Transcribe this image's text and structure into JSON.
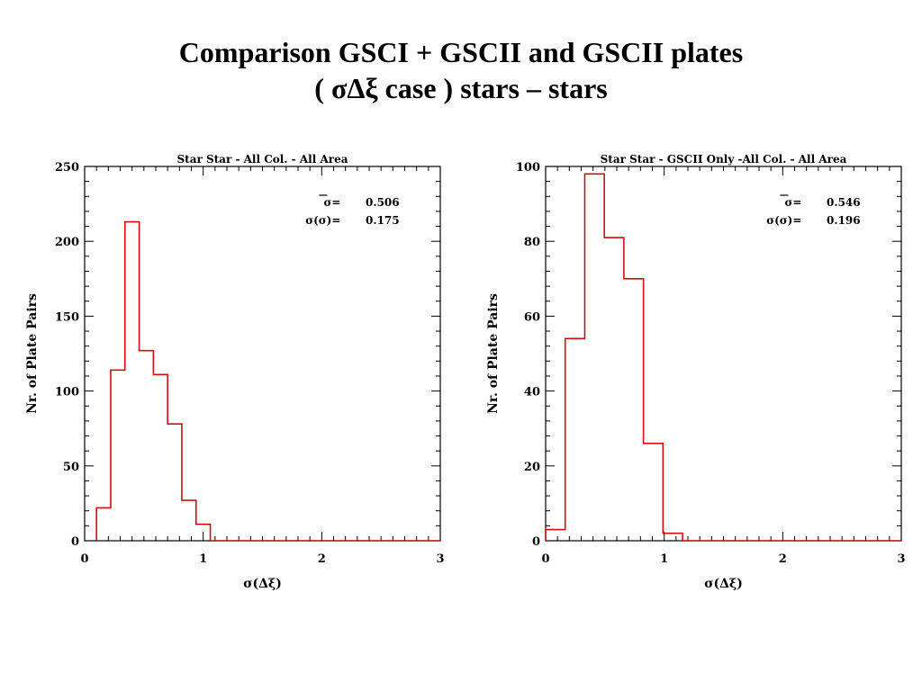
{
  "slide": {
    "title_line1": "Comparison GSCI + GSCII and GSCII plates",
    "title_line2": "( σΔξ case ) stars – stars"
  },
  "colors": {
    "histogram": "#cc1111",
    "axis": "#000000"
  },
  "chart_data": [
    {
      "type": "histogram",
      "title": "Star Star - All Col. - All Area",
      "xlabel": "σ(Δξ)",
      "ylabel": "Nr. of Plate Pairs",
      "xlim": [
        0,
        3
      ],
      "ylim": [
        0,
        250
      ],
      "xticks": [
        0,
        1,
        2,
        3
      ],
      "yticks": [
        0,
        50,
        100,
        150,
        200,
        250
      ],
      "bin_width": 0.12,
      "bins": [
        {
          "x0": 0.1,
          "x1": 0.22,
          "count": 22
        },
        {
          "x0": 0.22,
          "x1": 0.34,
          "count": 114
        },
        {
          "x0": 0.34,
          "x1": 0.46,
          "count": 213
        },
        {
          "x0": 0.46,
          "x1": 0.58,
          "count": 127
        },
        {
          "x0": 0.58,
          "x1": 0.7,
          "count": 111
        },
        {
          "x0": 0.7,
          "x1": 0.82,
          "count": 78
        },
        {
          "x0": 0.82,
          "x1": 0.94,
          "count": 27
        },
        {
          "x0": 0.94,
          "x1": 1.06,
          "count": 11
        },
        {
          "x0": 1.06,
          "x1": 3.0,
          "count": 0
        }
      ],
      "stats": [
        {
          "label": "σ=",
          "value": "0.506"
        },
        {
          "label": "σ(σ)=",
          "value": "0.175"
        }
      ],
      "grid": false,
      "legend": "none"
    },
    {
      "type": "histogram",
      "title": "Star Star - GSCII Only -All Col. - All Area",
      "xlabel": "σ(Δξ)",
      "ylabel": "Nr. of Plate Pairs",
      "xlim": [
        0,
        3
      ],
      "ylim": [
        0,
        100
      ],
      "xticks": [
        0,
        1,
        2,
        3
      ],
      "yticks": [
        0,
        20,
        40,
        60,
        80,
        100
      ],
      "bin_width": 0.165,
      "bins": [
        {
          "x0": 0.0,
          "x1": 0.165,
          "count": 3
        },
        {
          "x0": 0.165,
          "x1": 0.33,
          "count": 54
        },
        {
          "x0": 0.33,
          "x1": 0.495,
          "count": 98
        },
        {
          "x0": 0.495,
          "x1": 0.66,
          "count": 81
        },
        {
          "x0": 0.66,
          "x1": 0.825,
          "count": 70
        },
        {
          "x0": 0.825,
          "x1": 0.99,
          "count": 26
        },
        {
          "x0": 0.99,
          "x1": 1.155,
          "count": 2
        },
        {
          "x0": 1.155,
          "x1": 3.0,
          "count": 0
        }
      ],
      "stats": [
        {
          "label": "σ=",
          "value": "0.546"
        },
        {
          "label": "σ(σ)=",
          "value": "0.196"
        }
      ],
      "grid": false,
      "legend": "none"
    }
  ]
}
